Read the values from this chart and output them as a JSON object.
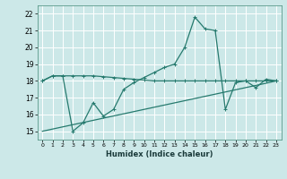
{
  "xlabel": "Humidex (Indice chaleur)",
  "bg_color": "#cce8e8",
  "grid_color": "#ffffff",
  "line_color": "#267a6e",
  "xlim": [
    -0.5,
    23.5
  ],
  "ylim": [
    14.5,
    22.5
  ],
  "xticks": [
    0,
    1,
    2,
    3,
    4,
    5,
    6,
    7,
    8,
    9,
    10,
    11,
    12,
    13,
    14,
    15,
    16,
    17,
    18,
    19,
    20,
    21,
    22,
    23
  ],
  "yticks": [
    15,
    16,
    17,
    18,
    19,
    20,
    21,
    22
  ],
  "line1_x": [
    0,
    1,
    2,
    3,
    4,
    5,
    6,
    7,
    8,
    9,
    10,
    11,
    12,
    13,
    14,
    15,
    16,
    17,
    18,
    19,
    20,
    21,
    22,
    23
  ],
  "line1_y": [
    18.0,
    18.3,
    18.3,
    18.3,
    18.3,
    18.3,
    18.25,
    18.2,
    18.15,
    18.1,
    18.05,
    18.0,
    18.0,
    18.0,
    18.0,
    18.0,
    18.0,
    18.0,
    18.0,
    18.0,
    18.0,
    18.0,
    18.0,
    18.0
  ],
  "line2_x": [
    0,
    1,
    2,
    3,
    4,
    5,
    6,
    7,
    8,
    9,
    10,
    11,
    12,
    13,
    14,
    15,
    16,
    17,
    18,
    19,
    20,
    21,
    22,
    23
  ],
  "line2_y": [
    15.0,
    15.13,
    15.26,
    15.39,
    15.52,
    15.65,
    15.78,
    15.91,
    16.04,
    16.17,
    16.3,
    16.43,
    16.56,
    16.69,
    16.82,
    16.95,
    17.08,
    17.21,
    17.34,
    17.47,
    17.6,
    17.73,
    17.86,
    18.0
  ],
  "line3_x": [
    0,
    1,
    2,
    3,
    4,
    5,
    6,
    7,
    8,
    9,
    10,
    11,
    12,
    13,
    14,
    15,
    16,
    17,
    18,
    19,
    20,
    21,
    22,
    23
  ],
  "line3_y": [
    18.0,
    18.3,
    18.3,
    15.0,
    15.5,
    16.7,
    15.9,
    16.3,
    17.5,
    17.9,
    18.2,
    18.5,
    18.8,
    19.0,
    20.0,
    21.8,
    21.1,
    21.0,
    16.3,
    17.9,
    18.0,
    17.6,
    18.1,
    18.0
  ]
}
